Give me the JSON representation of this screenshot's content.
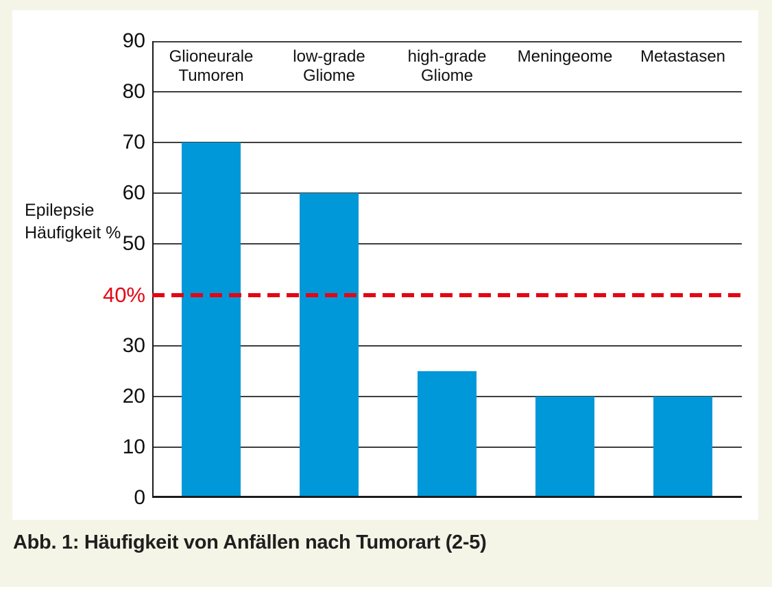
{
  "colors": {
    "page_background": "#f4f5e6",
    "panel_background": "#ffffff",
    "bar": "#0098d9",
    "reference": "#e30613",
    "gridline": "#3d3d3d",
    "axis": "#1a1a1a"
  },
  "chart_data": {
    "type": "bar",
    "categories": [
      "Glioneurale Tumoren",
      "low-grade Gliome",
      "high-grade Gliome",
      "Meningeome",
      "Metastasen"
    ],
    "category_label_lines": [
      [
        "Glioneurale",
        "Tumoren"
      ],
      [
        "low-grade",
        "Gliome"
      ],
      [
        "high-grade",
        "Gliome"
      ],
      [
        "Meningeome"
      ],
      [
        "Metastasen"
      ]
    ],
    "values": [
      70,
      60,
      25,
      20,
      20
    ],
    "unit": "%",
    "ylabel": "Epilepsie Häufigkeit %",
    "ylabel_lines": [
      "Epilepsie",
      "Häufigkeit %"
    ],
    "ylim": [
      0,
      90
    ],
    "yticks": [
      90,
      80,
      70,
      60,
      50,
      40,
      30,
      20,
      10,
      0
    ],
    "grid": true,
    "legend": false,
    "reference_line": {
      "value": 40,
      "label": "40%",
      "style": "dashed"
    }
  },
  "caption": "Abb. 1: Häufigkeit von Anfällen nach Tumorart (2-5)"
}
